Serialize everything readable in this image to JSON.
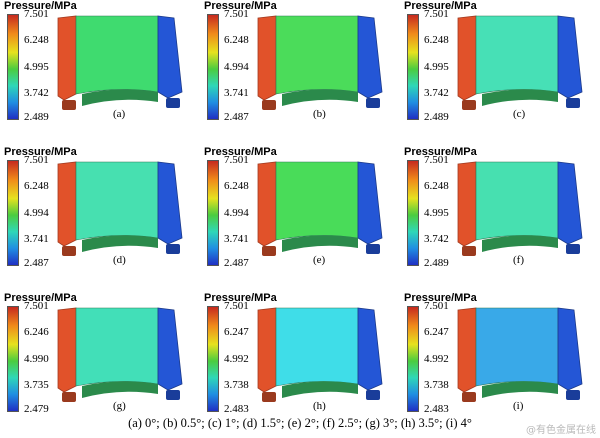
{
  "panels": [
    {
      "title": "Pressure/MPa",
      "ticks": [
        "7.501",
        "6.248",
        "4.995",
        "3.742",
        "2.489"
      ],
      "label": "(a)",
      "mid_color": "#3fdb6f"
    },
    {
      "title": "Pressure/MPa",
      "ticks": [
        "7.501",
        "6.248",
        "4.994",
        "3.741",
        "2.487"
      ],
      "label": "(b)",
      "mid_color": "#4bdc5a"
    },
    {
      "title": "Pressure/MPa",
      "ticks": [
        "7.501",
        "6.248",
        "4.995",
        "3.742",
        "2.489"
      ],
      "label": "(c)",
      "mid_color": "#47e0b6"
    },
    {
      "title": "Pressure/MPa",
      "ticks": [
        "7.501",
        "6.248",
        "4.994",
        "3.741",
        "2.487"
      ],
      "label": "(d)",
      "mid_color": "#47e0b0"
    },
    {
      "title": "Pressure/MPa",
      "ticks": [
        "7.501",
        "6.248",
        "4.994",
        "3.741",
        "2.487"
      ],
      "label": "(e)",
      "mid_color": "#49dc59"
    },
    {
      "title": "Pressure/MPa",
      "ticks": [
        "7.501",
        "6.248",
        "4.995",
        "3.742",
        "2.489"
      ],
      "label": "(f)",
      "mid_color": "#47e0b0"
    },
    {
      "title": "Pressure/MPa",
      "ticks": [
        "7.501",
        "6.246",
        "4.990",
        "3.735",
        "2.479"
      ],
      "label": "(g)",
      "mid_color": "#42dfb8"
    },
    {
      "title": "Pressure/MPa",
      "ticks": [
        "7.501",
        "6.247",
        "4.992",
        "3.738",
        "2.483"
      ],
      "label": "(h)",
      "mid_color": "#3fdde8"
    },
    {
      "title": "Pressure/MPa",
      "ticks": [
        "7.501",
        "6.247",
        "4.992",
        "3.738",
        "2.483"
      ],
      "label": "(i)",
      "mid_color": "#39a9e8"
    }
  ],
  "caption": "(a) 0°; (b) 0.5°; (c) 1°; (d) 1.5°; (e) 2°; (f) 2.5°; (g) 3°; (h) 3.5°; (i) 4°",
  "watermark": "@有色金属在线",
  "colors": {
    "high": "#e1522a",
    "low": "#2456d6",
    "pad": "#2b8a4b"
  }
}
